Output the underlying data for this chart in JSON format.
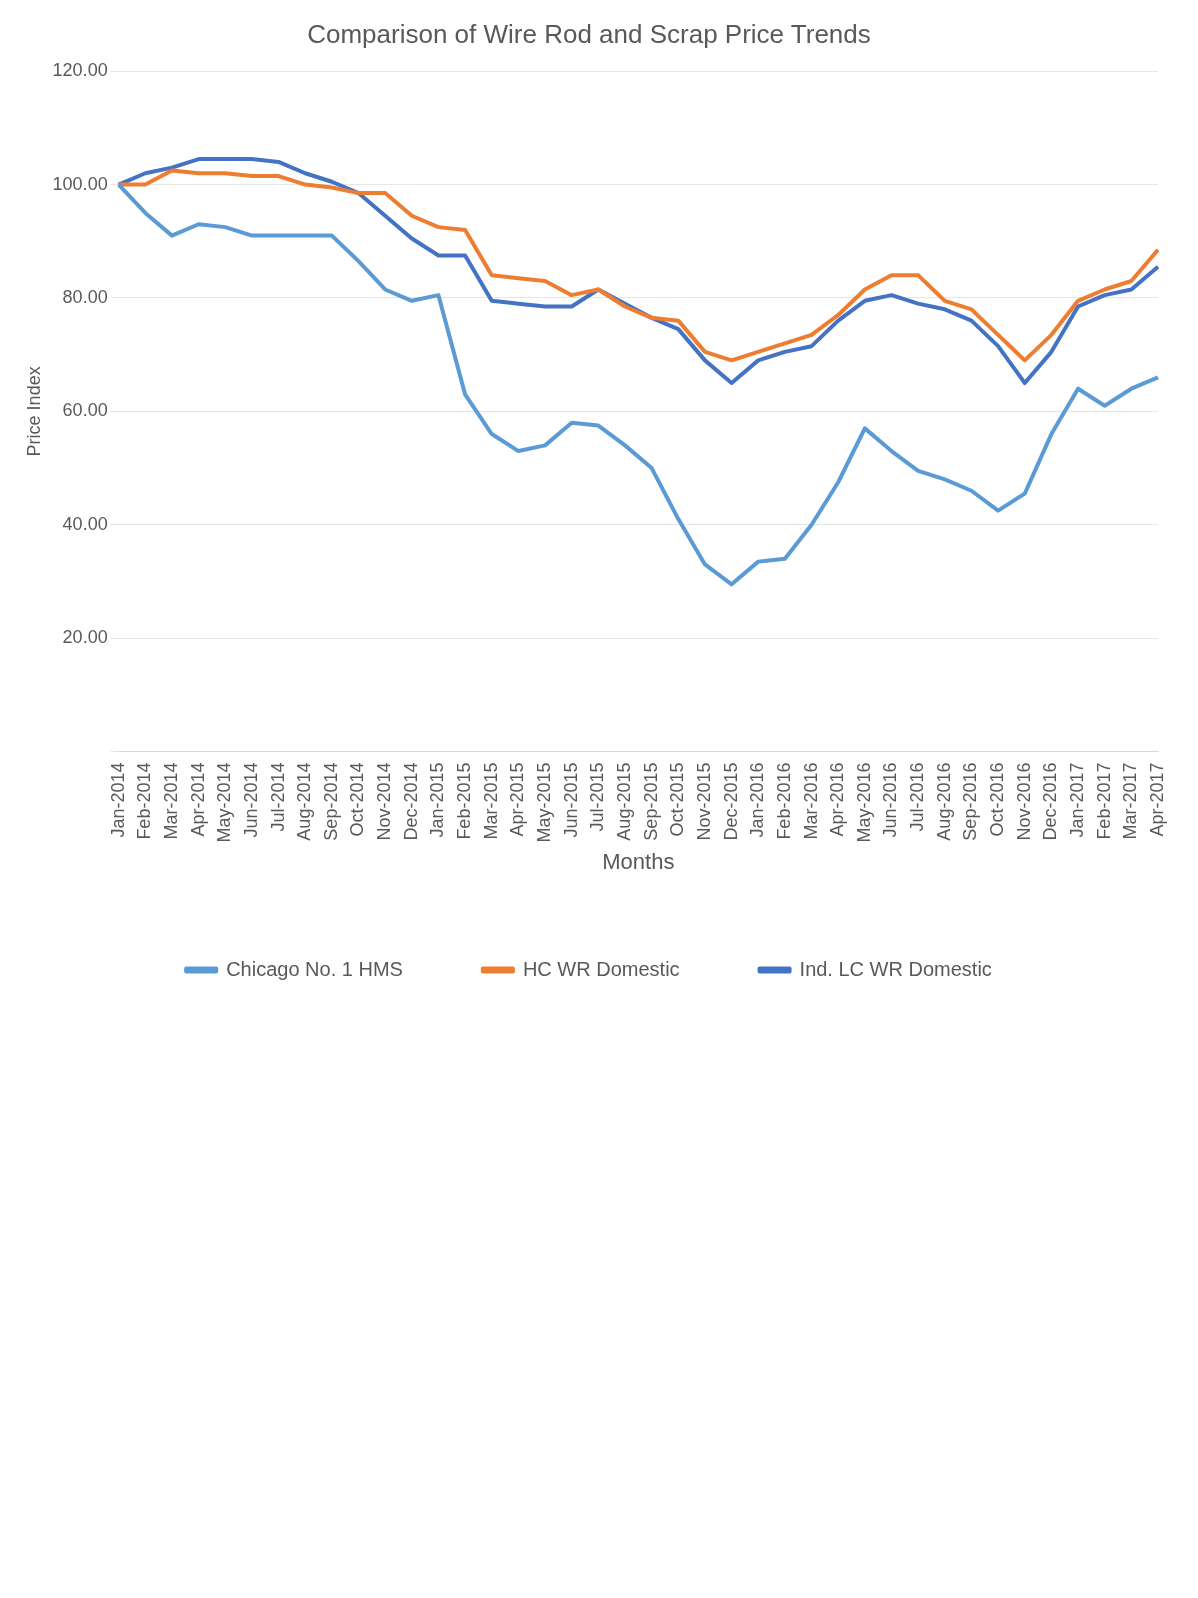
{
  "chart_data": {
    "type": "line",
    "title": "Comparison of Wire Rod and Scrap Price Trends",
    "xlabel": "Months",
    "ylabel": "Price Index",
    "categories": [
      "Jan-2014",
      "Feb-2014",
      "Mar-2014",
      "Apr-2014",
      "May-2014",
      "Jun-2014",
      "Jul-2014",
      "Aug-2014",
      "Sep-2014",
      "Oct-2014",
      "Nov-2014",
      "Dec-2014",
      "Jan-2015",
      "Feb-2015",
      "Mar-2015",
      "Apr-2015",
      "May-2015",
      "Jun-2015",
      "Jul-2015",
      "Aug-2015",
      "Sep-2015",
      "Oct-2015",
      "Nov-2015",
      "Dec-2015",
      "Jan-2016",
      "Feb-2016",
      "Mar-2016",
      "Apr-2016",
      "May-2016",
      "Jun-2016",
      "Jul-2016",
      "Aug-2016",
      "Sep-2016",
      "Oct-2016",
      "Nov-2016",
      "Dec-2016",
      "Jan-2017",
      "Feb-2017",
      "Mar-2017",
      "Apr-2017"
    ],
    "series": [
      {
        "name": "Chicago No. 1 HMS",
        "color": "#5b9bd5",
        "values": [
          100,
          95,
          91,
          93,
          92.5,
          91,
          91,
          91,
          91,
          86.5,
          81.5,
          79.5,
          80.5,
          63,
          56,
          53,
          54,
          58,
          57.5,
          54,
          50,
          41,
          33,
          29.5,
          33.5,
          34,
          40,
          47.5,
          57,
          53,
          49.5,
          48,
          46,
          42.5,
          45.5,
          56,
          64,
          61,
          64,
          66
        ]
      },
      {
        "name": "HC WR Domestic",
        "color": "#ed7d31",
        "values": [
          100,
          100,
          102.5,
          102,
          102,
          101.5,
          101.5,
          100,
          99.5,
          98.5,
          98.5,
          94.5,
          92.5,
          92,
          84,
          83.5,
          83,
          80.5,
          81.5,
          78.5,
          76.5,
          76,
          70.5,
          69,
          70.5,
          72,
          73.5,
          77,
          81.5,
          84,
          84,
          79.5,
          78,
          73.5,
          69,
          73.5,
          79.5,
          81.5,
          83,
          88.5
        ]
      },
      {
        "name": "Ind. LC WR Domestic",
        "color": "#4472c4",
        "values": [
          100,
          102,
          103,
          104.5,
          104.5,
          104.5,
          104,
          102,
          100.5,
          98.5,
          94.5,
          90.5,
          87.5,
          87.5,
          79.5,
          79,
          78.5,
          78.5,
          81.5,
          79,
          76.5,
          74.5,
          69,
          65,
          69,
          70.5,
          71.5,
          76,
          79.5,
          80.5,
          79,
          78,
          76,
          71.5,
          65,
          70.5,
          78.5,
          80.5,
          81.5,
          85.5
        ]
      }
    ],
    "ylim": [
      0,
      120
    ],
    "yticks": [
      {
        "value": 0,
        "label": null
      },
      {
        "value": 20,
        "label": "20.00"
      },
      {
        "value": 40,
        "label": "40.00"
      },
      {
        "value": 60,
        "label": "60.00"
      },
      {
        "value": 80,
        "label": "80.00"
      },
      {
        "value": 100,
        "label": "100.00"
      },
      {
        "value": 120,
        "label": "120.00"
      }
    ],
    "grid": "y",
    "legend": "bottom",
    "marker": "none",
    "line_style": "solid"
  }
}
